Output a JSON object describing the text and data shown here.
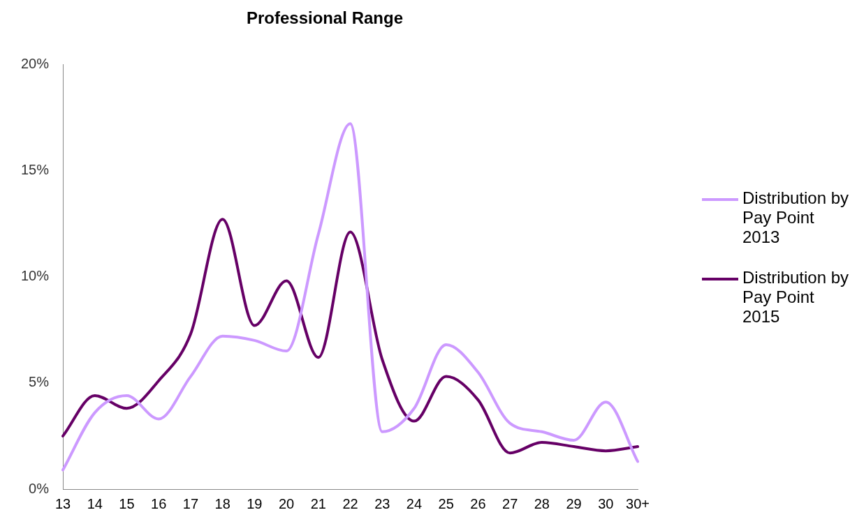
{
  "chart_data": {
    "type": "line",
    "title": "Professional Range",
    "categories": [
      "13",
      "14",
      "15",
      "16",
      "17",
      "18",
      "19",
      "20",
      "21",
      "22",
      "23",
      "24",
      "25",
      "26",
      "27",
      "28",
      "29",
      "30",
      "30+"
    ],
    "series": [
      {
        "name": "Distribution by Pay Point 2013",
        "color": "#cc99ff",
        "values": [
          0.9,
          3.6,
          4.4,
          3.3,
          5.3,
          7.2,
          7.0,
          6.5,
          12.0,
          17.2,
          2.7,
          3.8,
          6.8,
          5.5,
          3.1,
          2.7,
          2.3,
          4.1,
          1.3
        ]
      },
      {
        "name": "Distribution by Pay Point 2015",
        "color": "#660066",
        "values": [
          2.5,
          4.4,
          3.8,
          5.1,
          7.3,
          12.7,
          7.7,
          9.8,
          6.2,
          12.1,
          6.1,
          3.2,
          5.3,
          4.2,
          1.7,
          2.2,
          2.0,
          1.8,
          2.0
        ]
      }
    ],
    "ylim": [
      0,
      20
    ],
    "yticks": [
      {
        "value": 0,
        "label": "0%"
      },
      {
        "value": 5,
        "label": "5%"
      },
      {
        "value": 10,
        "label": "10%"
      },
      {
        "value": 15,
        "label": "15%"
      },
      {
        "value": 20,
        "label": "20%"
      }
    ],
    "grid": false,
    "legend": "right",
    "marker": "none",
    "line_style": "solid"
  }
}
